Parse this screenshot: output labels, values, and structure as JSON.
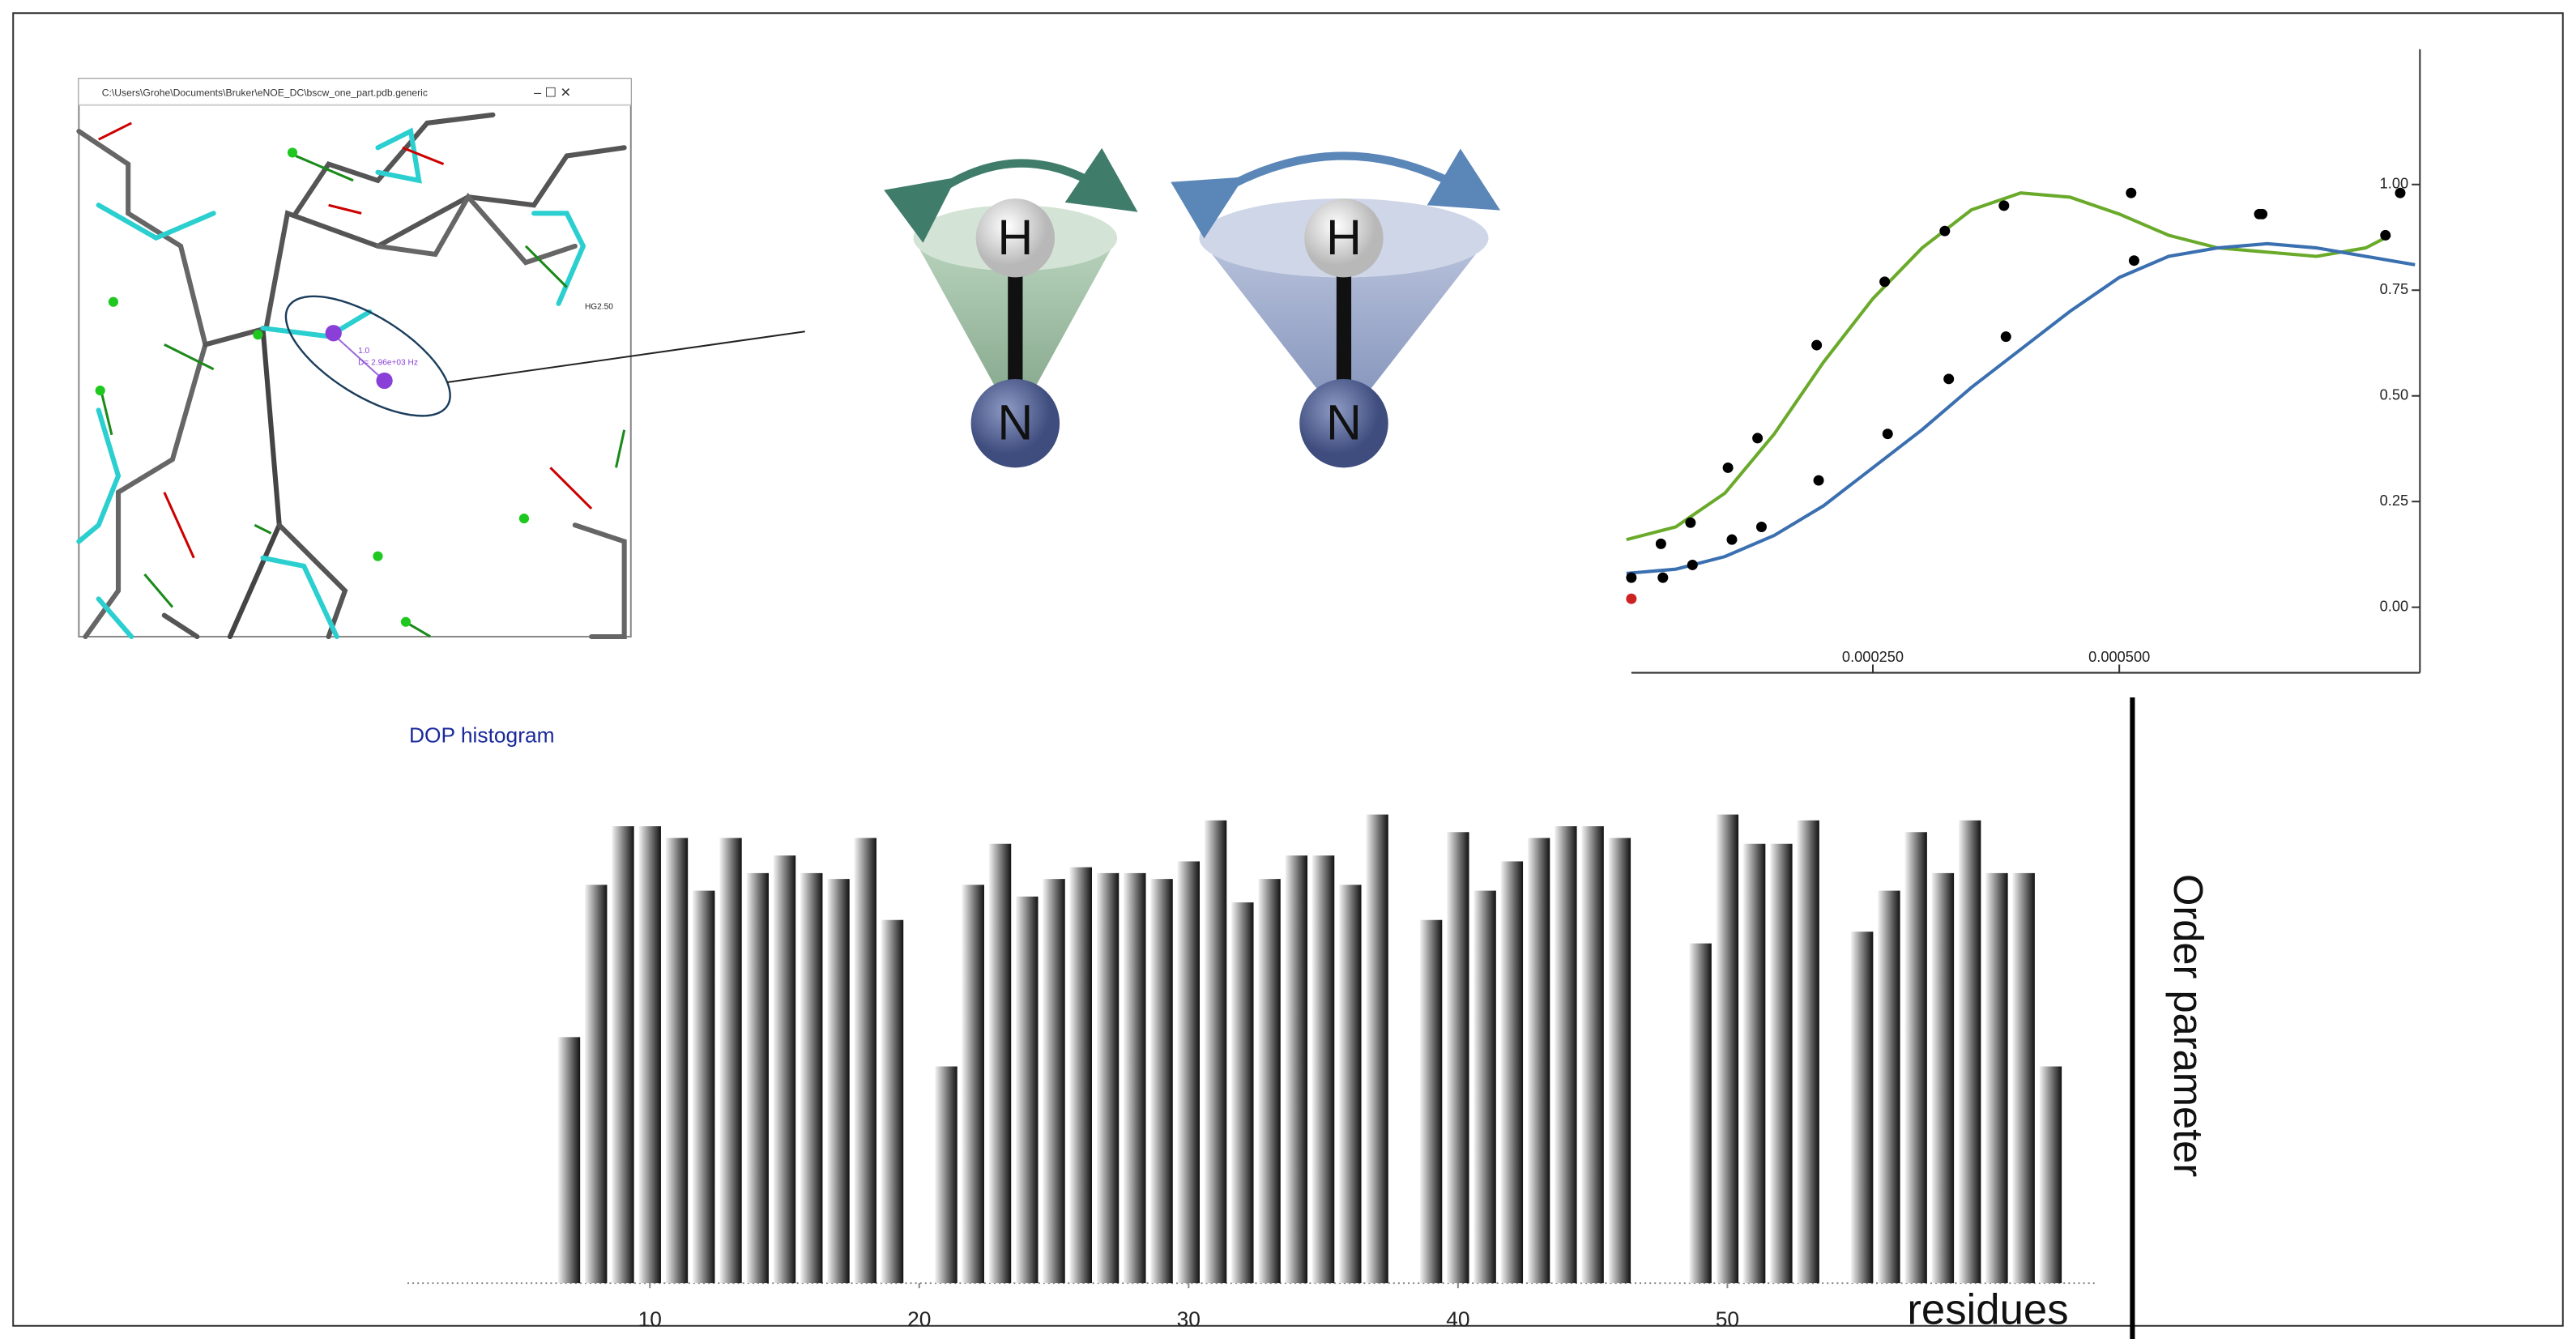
{
  "molecule_window": {
    "title": "C:\\Users\\Grohe\\Documents\\Bruker\\eNOE_DC\\bscw_one_part.pdb.generic",
    "atom_label": "HG2.50",
    "pair_label": "1.0",
    "distance_label": "D= 2.96e+03 Hz"
  },
  "cone_diagram": {
    "labels": [
      "H",
      "N",
      "H",
      "N"
    ]
  },
  "chart_data": [
    {
      "type": "scatter",
      "xlim": [
        0,
        0.0008
      ],
      "ylim": [
        -0.155,
        1.32
      ],
      "xticks": [
        {
          "value": 0.00025,
          "label": "0.000250"
        },
        {
          "value": 0.0005,
          "label": "0.000500"
        }
      ],
      "yticks": [
        {
          "value": 0,
          "label": "0.00"
        },
        0.25,
        {
          "value": 0.5,
          "label": "0.50"
        },
        0.75,
        {
          "value": 1,
          "label": "1.00"
        }
      ],
      "series": [
        {
          "color": "#6aaa2a",
          "line": true,
          "x": [
            0,
            5e-05,
            0.0001,
            0.00015,
            0.0002,
            0.00025,
            0.0003,
            0.00035,
            0.0004,
            0.00045,
            0.0005,
            0.00055,
            0.0006,
            0.00065,
            0.0007,
            0.00075,
            0.000775
          ],
          "values": [
            0.16,
            0.19,
            0.27,
            0.41,
            0.58,
            0.73,
            0.85,
            0.94,
            0.98,
            0.97,
            0.93,
            0.88,
            0.85,
            0.84,
            0.83,
            0.85,
            0.88
          ]
        },
        {
          "color": "#3a6fb0",
          "line": true,
          "x": [
            0,
            5e-05,
            0.0001,
            0.00015,
            0.0002,
            0.00025,
            0.0003,
            0.00035,
            0.0004,
            0.00045,
            0.0005,
            0.00055,
            0.0006,
            0.00065,
            0.0007,
            0.00075,
            0.0008
          ],
          "values": [
            0.08,
            0.09,
            0.12,
            0.17,
            0.24,
            0.33,
            0.42,
            0.52,
            0.61,
            0.7,
            0.78,
            0.83,
            0.85,
            0.86,
            0.85,
            0.83,
            0.81
          ]
        },
        {
          "color": "#000000",
          "line": false,
          "x": [
            5e-06,
            3.5e-05,
            3.7e-05,
            6.5e-05,
            6.7e-05,
            0.000103,
            0.000107,
            0.000133,
            0.000137,
            0.000193,
            0.000195,
            0.000262,
            0.000265,
            0.000323,
            0.000327,
            0.000383,
            0.000385,
            0.000512,
            0.000515,
            0.000642,
            0.000645,
            0.00077,
            0.000785
          ],
          "values": [
            0.07,
            0.15,
            0.07,
            0.2,
            0.1,
            0.33,
            0.16,
            0.4,
            0.19,
            0.62,
            0.3,
            0.77,
            0.41,
            0.89,
            0.54,
            0.95,
            0.64,
            0.98,
            0.82,
            0.93,
            0.93,
            0.88,
            0.98
          ]
        },
        {
          "color": "#cc2222",
          "line": false,
          "x": [
            5e-06
          ],
          "values": [
            0.02
          ]
        }
      ]
    },
    {
      "type": "bar",
      "title": "DOP histogram",
      "xlabel": "residues",
      "ylabel": "Order parameter",
      "xlim": [
        1,
        64
      ],
      "ylim": [
        0,
        1
      ],
      "xticks": [
        10,
        20,
        30,
        40,
        50
      ],
      "x": [
        7,
        8,
        9,
        10,
        11,
        12,
        13,
        14,
        15,
        16,
        17,
        18,
        19,
        21,
        22,
        23,
        24,
        25,
        26,
        27,
        28,
        29,
        30,
        31,
        32,
        33,
        34,
        35,
        36,
        37,
        39,
        40,
        41,
        42,
        43,
        44,
        45,
        46,
        49,
        50,
        51,
        52,
        53,
        55,
        56,
        57,
        58,
        59,
        60,
        61,
        62
      ],
      "values": [
        0.42,
        0.68,
        0.78,
        0.78,
        0.76,
        0.67,
        0.76,
        0.7,
        0.73,
        0.7,
        0.69,
        0.76,
        0.62,
        0.37,
        0.68,
        0.75,
        0.66,
        0.69,
        0.71,
        0.7,
        0.7,
        0.69,
        0.72,
        0.79,
        0.65,
        0.69,
        0.73,
        0.73,
        0.68,
        0.8,
        0.62,
        0.77,
        0.67,
        0.72,
        0.76,
        0.78,
        0.78,
        0.76,
        0.58,
        0.8,
        0.75,
        0.75,
        0.79,
        0.6,
        0.67,
        0.77,
        0.7,
        0.79,
        0.7,
        0.7,
        0.37
      ]
    }
  ]
}
